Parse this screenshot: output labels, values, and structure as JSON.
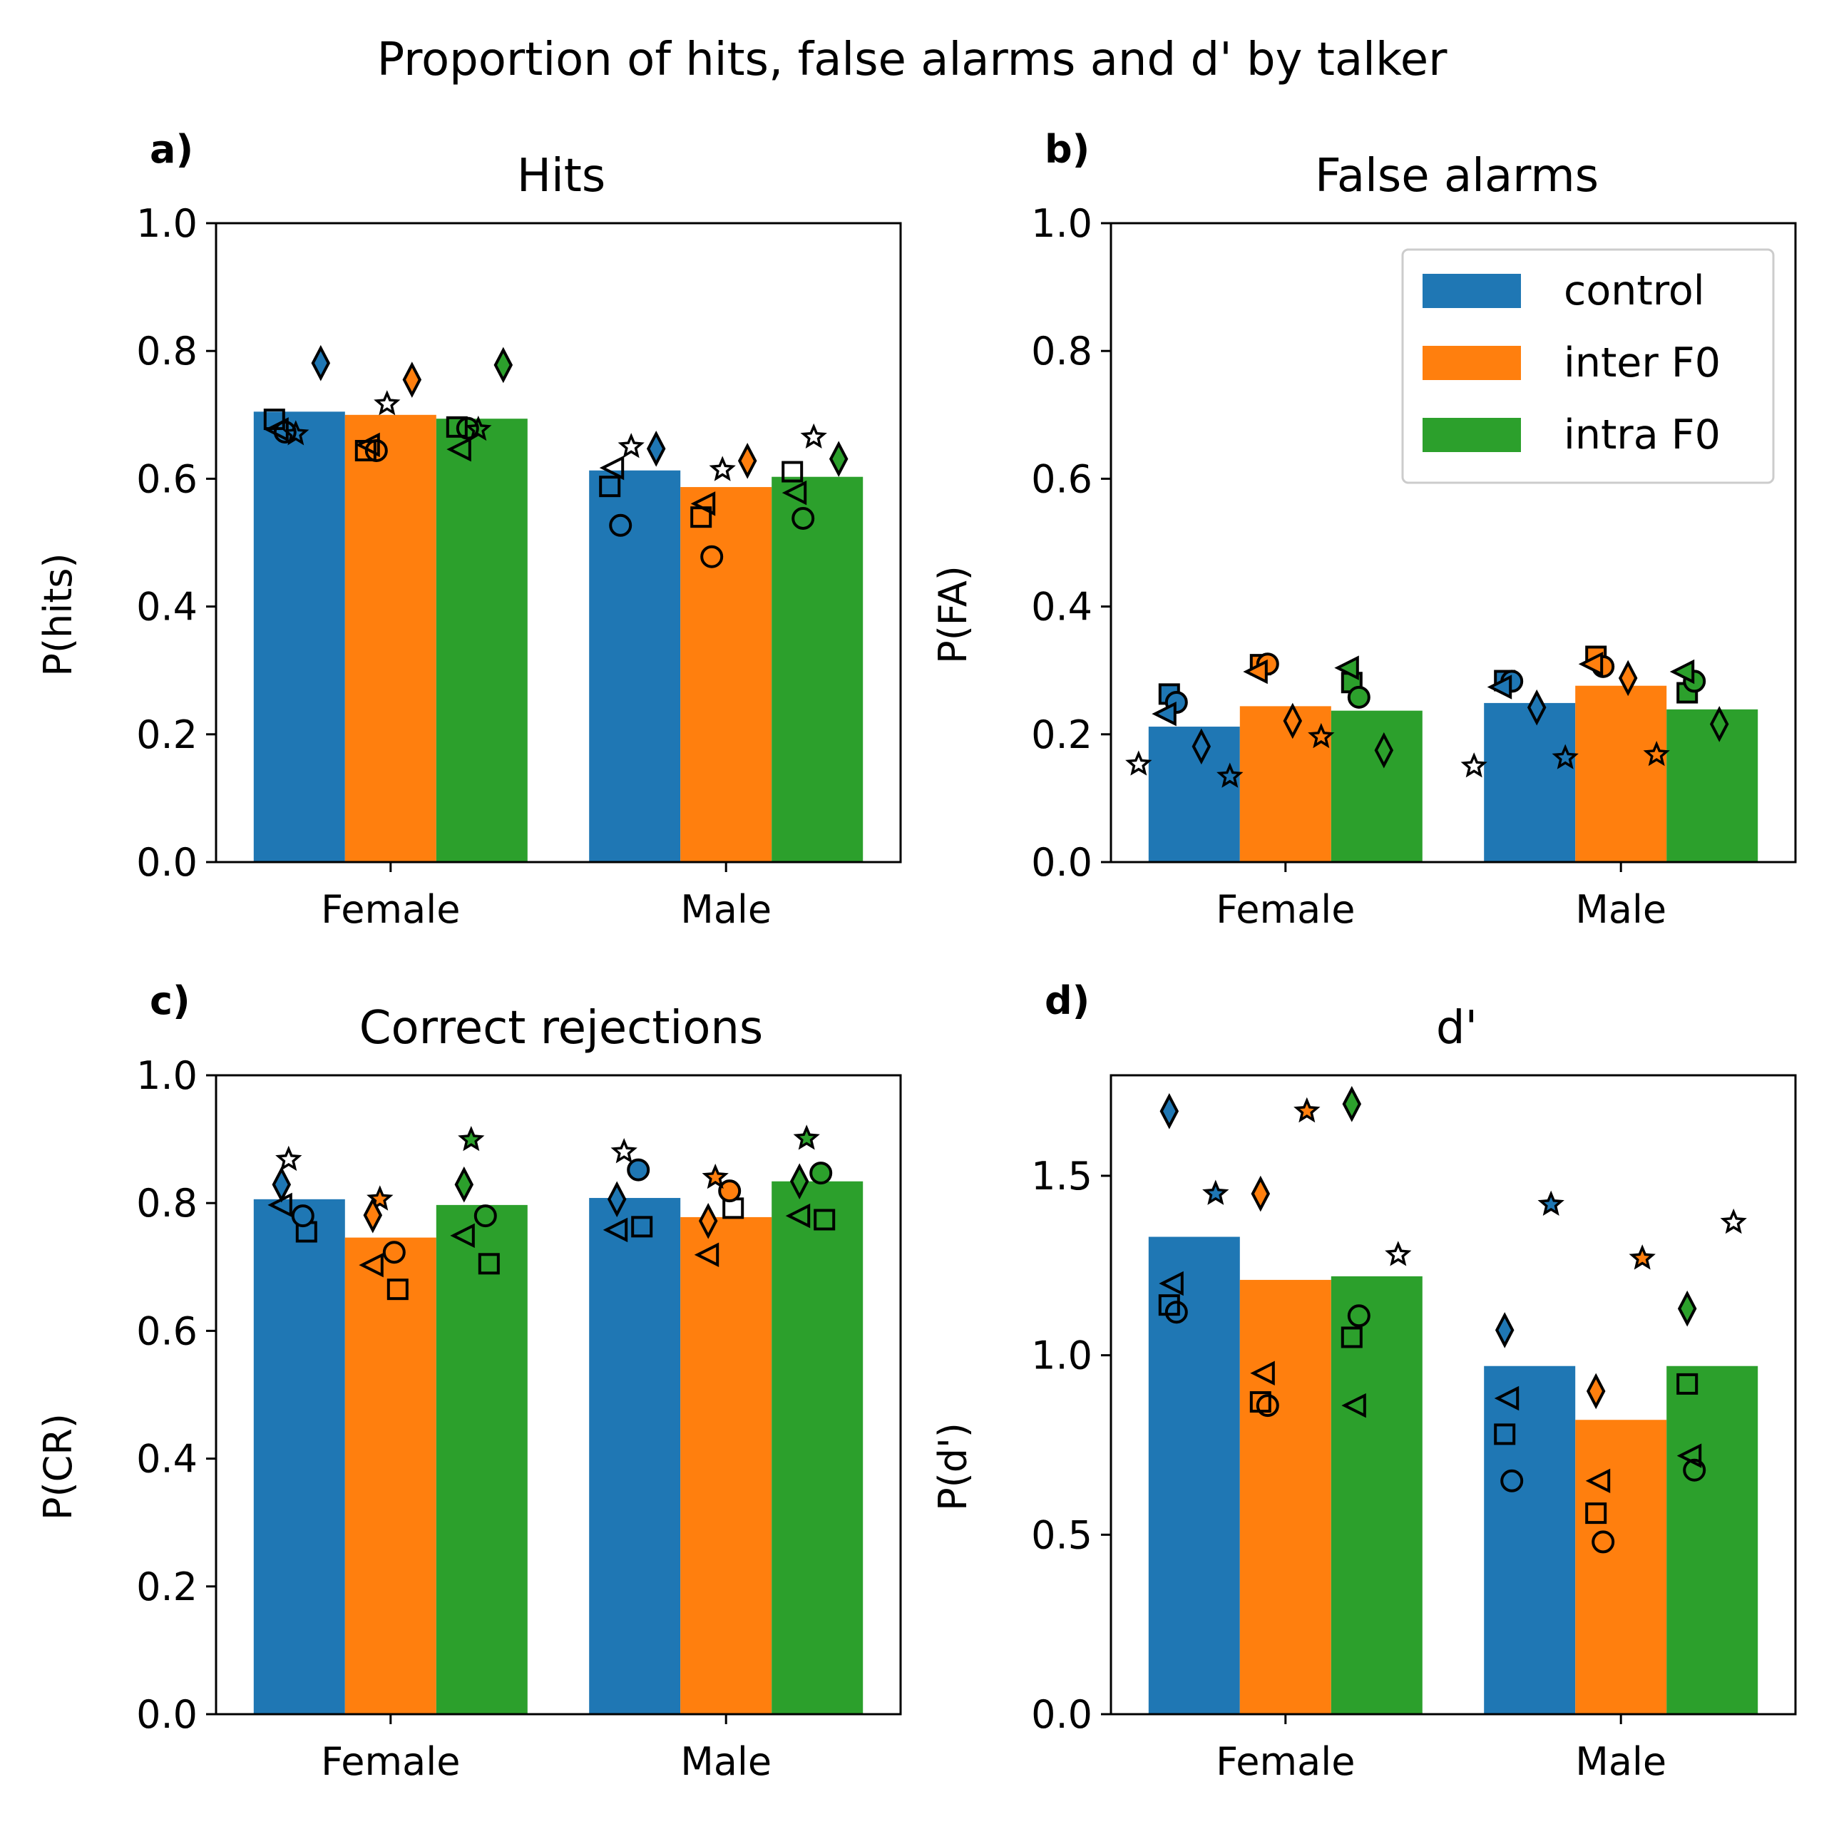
{
  "suptitle": "Proportion of hits, false alarms and d' by talker",
  "colors": {
    "control": "#1f77b4",
    "inter F0": "#ff7f0e",
    "intra F0": "#2ca02c"
  },
  "legend": {
    "entries": [
      "control",
      "inter F0",
      "intra F0"
    ],
    "placement": "upper right of panel b"
  },
  "chart_data": [
    {
      "type": "bar",
      "panel_label": "a)",
      "title": "Hits",
      "ylabel": "P(hits)",
      "xlabel": "",
      "categories": [
        "Female",
        "Male"
      ],
      "ylim": [
        0,
        1.0
      ],
      "yticks": [
        "0.0",
        "0.2",
        "0.4",
        "0.6",
        "0.8",
        "1.0"
      ],
      "ytick_values": [
        0,
        0.2,
        0.4,
        0.6,
        0.8,
        1.0
      ],
      "series": [
        {
          "name": "control",
          "values": [
            0.705,
            0.613
          ],
          "points": [
            {
              "marker": "square",
              "value": [
                0.693,
                0.588
              ]
            },
            {
              "marker": "circle",
              "value": [
                0.673,
                0.527
              ]
            },
            {
              "marker": "star",
              "value": [
                0.67,
                0.65
              ]
            },
            {
              "marker": "triangle-left",
              "value": [
                0.677,
                0.617
              ]
            },
            {
              "marker": "diamond",
              "value": [
                0.781,
                0.647
              ],
              "filled": true
            }
          ]
        },
        {
          "name": "inter F0",
          "values": [
            0.7,
            0.587
          ],
          "points": [
            {
              "marker": "square",
              "value": [
                0.644,
                0.54
              ]
            },
            {
              "marker": "circle",
              "value": [
                0.644,
                0.478
              ]
            },
            {
              "marker": "star",
              "value": [
                0.717,
                0.614
              ]
            },
            {
              "marker": "triangle-left",
              "value": [
                0.653,
                0.561
              ]
            },
            {
              "marker": "diamond",
              "value": [
                0.755,
                0.628
              ],
              "filled": true
            }
          ]
        },
        {
          "name": "intra F0",
          "values": [
            0.694,
            0.603
          ],
          "points": [
            {
              "marker": "square",
              "value": [
                0.681,
                0.611
              ]
            },
            {
              "marker": "circle",
              "value": [
                0.679,
                0.538
              ]
            },
            {
              "marker": "star",
              "value": [
                0.677,
                0.665
              ]
            },
            {
              "marker": "triangle-left",
              "value": [
                0.646,
                0.578
              ]
            },
            {
              "marker": "diamond",
              "value": [
                0.778,
                0.631
              ],
              "filled": true
            }
          ]
        }
      ]
    },
    {
      "type": "bar",
      "panel_label": "b)",
      "title": "False alarms",
      "ylabel": "P(FA)",
      "xlabel": "",
      "categories": [
        "Female",
        "Male"
      ],
      "ylim": [
        0,
        1.0
      ],
      "yticks": [
        "0.0",
        "0.2",
        "0.4",
        "0.6",
        "0.8",
        "1.0"
      ],
      "ytick_values": [
        0,
        0.2,
        0.4,
        0.6,
        0.8,
        1.0
      ],
      "series": [
        {
          "name": "control",
          "values": [
            0.212,
            0.249
          ],
          "points": [
            {
              "marker": "square",
              "value": [
                0.263,
                0.284
              ],
              "filled": true
            },
            {
              "marker": "circle",
              "value": [
                0.25,
                0.283
              ],
              "filled": true
            },
            {
              "marker": "star",
              "value": [
                0.153,
                0.15
              ]
            },
            {
              "marker": "triangle-left",
              "value": [
                0.232,
                0.274
              ],
              "filled": true
            },
            {
              "marker": "diamond",
              "value": [
                0.181,
                0.242
              ],
              "filled": true
            }
          ]
        },
        {
          "name": "inter F0",
          "values": [
            0.244,
            0.276
          ],
          "points": [
            {
              "marker": "square",
              "value": [
                0.309,
                0.322
              ],
              "filled": true
            },
            {
              "marker": "circle",
              "value": [
                0.31,
                0.306
              ],
              "filled": true
            },
            {
              "marker": "star",
              "value": [
                0.134,
                0.163
              ]
            },
            {
              "marker": "triangle-left",
              "value": [
                0.298,
                0.31
              ],
              "filled": true
            },
            {
              "marker": "diamond",
              "value": [
                0.221,
                0.288
              ],
              "filled": true
            }
          ]
        },
        {
          "name": "intra F0",
          "values": [
            0.237,
            0.239
          ],
          "points": [
            {
              "marker": "square",
              "value": [
                0.281,
                0.265
              ],
              "filled": true
            },
            {
              "marker": "circle",
              "value": [
                0.258,
                0.283
              ],
              "filled": true
            },
            {
              "marker": "star",
              "value": [
                0.196,
                0.168
              ]
            },
            {
              "marker": "triangle-left",
              "value": [
                0.304,
                0.298
              ],
              "filled": true
            },
            {
              "marker": "diamond",
              "value": [
                0.175,
                0.216
              ],
              "filled": true
            }
          ]
        }
      ]
    },
    {
      "type": "bar",
      "panel_label": "c)",
      "title": "Correct rejections",
      "ylabel": "P(CR)",
      "xlabel": "",
      "categories": [
        "Female",
        "Male"
      ],
      "ylim": [
        0,
        1.0
      ],
      "yticks": [
        "0.0",
        "0.2",
        "0.4",
        "0.6",
        "0.8",
        "1.0"
      ],
      "ytick_values": [
        0,
        0.2,
        0.4,
        0.6,
        0.8,
        1.0
      ],
      "series": [
        {
          "name": "control",
          "values": [
            0.806,
            0.808
          ],
          "points": [
            {
              "marker": "square",
              "value": [
                0.755,
                0.763
              ]
            },
            {
              "marker": "circle",
              "value": [
                0.78,
                0.852
              ],
              "filled": true
            },
            {
              "marker": "star",
              "value": [
                0.868,
                0.88
              ]
            },
            {
              "marker": "triangle-left",
              "value": [
                0.797,
                0.758
              ]
            },
            {
              "marker": "diamond",
              "value": [
                0.829,
                0.806
              ],
              "filled": true
            }
          ]
        },
        {
          "name": "inter F0",
          "values": [
            0.746,
            0.778
          ],
          "points": [
            {
              "marker": "square",
              "value": [
                0.665,
                0.792
              ]
            },
            {
              "marker": "circle",
              "value": [
                0.723,
                0.819
              ],
              "filled": true
            },
            {
              "marker": "star",
              "value": [
                0.806,
                0.84
              ],
              "filled": true
            },
            {
              "marker": "triangle-left",
              "value": [
                0.703,
                0.719
              ]
            },
            {
              "marker": "diamond",
              "value": [
                0.781,
                0.772
              ],
              "filled": true
            }
          ]
        },
        {
          "name": "intra F0",
          "values": [
            0.797,
            0.834
          ],
          "points": [
            {
              "marker": "square",
              "value": [
                0.705,
                0.774
              ]
            },
            {
              "marker": "circle",
              "value": [
                0.78,
                0.847
              ],
              "filled": true
            },
            {
              "marker": "star",
              "value": [
                0.899,
                0.901
              ],
              "filled": true
            },
            {
              "marker": "triangle-left",
              "value": [
                0.749,
                0.78
              ]
            },
            {
              "marker": "diamond",
              "value": [
                0.829,
                0.834
              ],
              "filled": true
            }
          ]
        }
      ]
    },
    {
      "type": "bar",
      "panel_label": "d)",
      "title": "d'",
      "ylabel": "P(d')",
      "xlabel": "",
      "categories": [
        "Female",
        "Male"
      ],
      "ylim": [
        0,
        1.78
      ],
      "yticks": [
        "0.0",
        "0.5",
        "1.0",
        "1.5"
      ],
      "ytick_values": [
        0,
        0.5,
        1.0,
        1.5
      ],
      "series": [
        {
          "name": "control",
          "values": [
            1.33,
            0.97
          ],
          "points": [
            {
              "marker": "square",
              "value": [
                1.14,
                0.78
              ]
            },
            {
              "marker": "circle",
              "value": [
                1.12,
                0.65
              ]
            },
            {
              "marker": "star",
              "value": [
                1.45,
                1.42
              ],
              "filled": true
            },
            {
              "marker": "triangle-left",
              "value": [
                1.2,
                0.88
              ]
            },
            {
              "marker": "diamond",
              "value": [
                1.68,
                1.07
              ],
              "filled": true
            }
          ]
        },
        {
          "name": "inter F0",
          "values": [
            1.21,
            0.82
          ],
          "points": [
            {
              "marker": "square",
              "value": [
                0.87,
                0.56
              ]
            },
            {
              "marker": "circle",
              "value": [
                0.86,
                0.48
              ]
            },
            {
              "marker": "star",
              "value": [
                1.68,
                1.27
              ],
              "filled": true
            },
            {
              "marker": "triangle-left",
              "value": [
                0.95,
                0.65
              ]
            },
            {
              "marker": "diamond",
              "value": [
                1.45,
                0.9
              ],
              "filled": true
            }
          ]
        },
        {
          "name": "intra F0",
          "values": [
            1.22,
            0.97
          ],
          "points": [
            {
              "marker": "square",
              "value": [
                1.05,
                0.92
              ]
            },
            {
              "marker": "circle",
              "value": [
                1.11,
                0.68
              ]
            },
            {
              "marker": "star",
              "value": [
                1.28,
                1.37
              ]
            },
            {
              "marker": "triangle-left",
              "value": [
                0.86,
                0.72
              ]
            },
            {
              "marker": "diamond",
              "value": [
                1.7,
                1.13
              ],
              "filled": true
            }
          ]
        }
      ]
    }
  ]
}
